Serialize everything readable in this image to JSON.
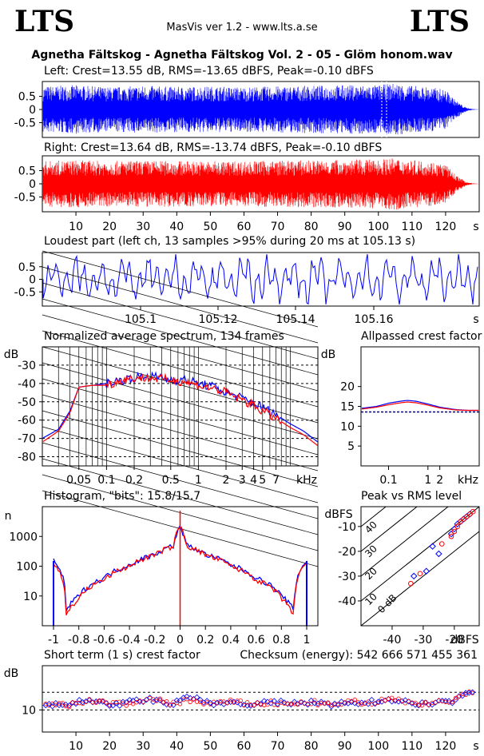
{
  "header": {
    "logo_left": "LTS",
    "logo_right": "LTS",
    "version": "MasVis ver 1.2 - www.lts.a.se",
    "track": "Agnetha Fältskog - Agnetha Fältskog Vol. 2 - 05 - Glöm honom.wav"
  },
  "waveform": {
    "left_title": "Left: Crest=13.55 dB, RMS=-13.65 dBFS, Peak=-0.10 dBFS",
    "right_title": "Right: Crest=13.64 dB, RMS=-13.74 dBFS, Peak=-0.10 dBFS",
    "y_ticks": [
      "0.5",
      "0",
      "-0.5"
    ],
    "x_ticks": [
      "10",
      "20",
      "30",
      "40",
      "50",
      "60",
      "70",
      "80",
      "90",
      "100",
      "110",
      "120"
    ],
    "x_unit": "s",
    "left_color": "#0000ff",
    "right_color": "#ff0000"
  },
  "loudest": {
    "title": "Loudest part (left  ch, 13 samples >95% during 20 ms at 105.13 s)",
    "y_ticks": [
      "0.5",
      "0",
      "-0.5"
    ],
    "x_ticks": [
      "105.1",
      "105.12",
      "105.14",
      "105.16"
    ],
    "x_unit": "s"
  },
  "spectrum": {
    "title": "Normalized average spectrum, 134 frames",
    "y_unit": "dB",
    "y_ticks": [
      "-30",
      "-40",
      "-50",
      "-60",
      "-70",
      "-80"
    ],
    "x_ticks": [
      "0.05",
      "0.1",
      "0.2",
      "0.5",
      "1",
      "2",
      "3",
      "4",
      "5",
      "7"
    ],
    "x_unit": "kHz"
  },
  "allpass": {
    "title": "Allpassed crest factor",
    "y_unit": "dB",
    "y_ticks": [
      "20",
      "15",
      "10",
      "5"
    ],
    "x_ticks": [
      "0.1",
      "1",
      "2"
    ],
    "x_unit": "kHz"
  },
  "histogram": {
    "title": "Histogram, \"bits\": 15.8/15.7",
    "y_unit": "n",
    "y_ticks": [
      "1000",
      "100",
      "10"
    ],
    "x_ticks": [
      "-1",
      "-0.8",
      "-0.6",
      "-0.4",
      "-0.2",
      "0",
      "0.2",
      "0.4",
      "0.6",
      "0.8",
      "1"
    ]
  },
  "peakrms": {
    "title": "Peak vs RMS level",
    "y_unit": "dBFS",
    "y_ticks": [
      "-10",
      "-20",
      "-30",
      "-40"
    ],
    "x_ticks": [
      "-40",
      "-30",
      "-20"
    ],
    "x_unit": "dBFS",
    "diag_labels": [
      "40",
      "30",
      "20",
      "10",
      "0 dB"
    ]
  },
  "shortcrest": {
    "title": "Short term (1 s) crest factor",
    "checksum": "Checksum (energy):   542 666 571 455 361",
    "y_unit": "dB",
    "y_ticks": [
      "10"
    ],
    "x_ticks": [
      "10",
      "20",
      "30",
      "40",
      "50",
      "60",
      "70",
      "80",
      "90",
      "100",
      "110",
      "120"
    ],
    "x_unit": "s"
  },
  "chart_data": [
    {
      "type": "area",
      "title": "Left: Crest=13.55 dB, RMS=-13.65 dBFS, Peak=-0.10 dBFS",
      "xlabel": "s",
      "xlim": [
        0,
        130
      ],
      "ylim": [
        -1,
        1
      ],
      "series": [
        {
          "name": "Left",
          "color": "#0000ff",
          "envelope_x": [
            0,
            10,
            20,
            30,
            40,
            50,
            60,
            70,
            80,
            90,
            100,
            105,
            110,
            115,
            120,
            123,
            126,
            128,
            130
          ],
          "envelope_y": [
            0.88,
            0.92,
            0.85,
            0.9,
            0.86,
            0.88,
            0.85,
            0.88,
            0.9,
            0.93,
            0.92,
            1.0,
            0.9,
            0.86,
            0.75,
            0.35,
            0.08,
            0.02,
            0
          ]
        }
      ]
    },
    {
      "type": "area",
      "title": "Right: Crest=13.64 dB, RMS=-13.74 dBFS, Peak=-0.10 dBFS",
      "xlabel": "s",
      "xlim": [
        0,
        130
      ],
      "ylim": [
        -1,
        1
      ],
      "series": [
        {
          "name": "Right",
          "color": "#ff0000",
          "envelope_x": [
            0,
            10,
            20,
            30,
            40,
            50,
            60,
            70,
            80,
            90,
            100,
            105,
            110,
            115,
            120,
            123,
            126,
            128,
            130
          ],
          "envelope_y": [
            0.86,
            0.9,
            0.86,
            0.88,
            0.87,
            0.86,
            0.86,
            0.88,
            0.89,
            0.92,
            0.93,
            0.98,
            0.9,
            0.86,
            0.74,
            0.34,
            0.08,
            0.02,
            0
          ]
        }
      ]
    },
    {
      "type": "line",
      "title": "Loudest part (left  ch, 13 samples >95% during 20 ms at 105.13 s)",
      "xlabel": "s",
      "xlim": [
        105.08,
        105.18
      ],
      "ylim": [
        -1,
        1
      ],
      "series": [
        {
          "color": "#0000ff",
          "x": [
            105.08,
            105.09,
            105.1,
            105.11,
            105.12,
            105.13,
            105.14,
            105.15,
            105.16,
            105.17,
            105.18
          ],
          "y": [
            0.4,
            -0.5,
            0.6,
            -0.7,
            0.5,
            0.95,
            -0.6,
            0.5,
            -0.7,
            0.6,
            0.3
          ]
        }
      ]
    },
    {
      "type": "line",
      "title": "Normalized average spectrum, 134 frames",
      "xlabel": "kHz",
      "ylabel": "dB",
      "ylim": [
        -85,
        -20
      ],
      "x": [
        0.02,
        0.03,
        0.04,
        0.05,
        0.07,
        0.1,
        0.15,
        0.2,
        0.3,
        0.5,
        0.7,
        1,
        1.5,
        2,
        3,
        4,
        5,
        7,
        10,
        14,
        20
      ],
      "series": [
        {
          "color": "#0000ff",
          "y": [
            -70,
            -65,
            -55,
            -42,
            -41,
            -40,
            -38,
            -37,
            -36,
            -38,
            -38,
            -40,
            -42,
            -45,
            -48,
            -51,
            -53,
            -57,
            -62,
            -66,
            -72
          ]
        },
        {
          "color": "#ff0000",
          "y": [
            -72,
            -66,
            -56,
            -42,
            -41,
            -41,
            -38,
            -37,
            -37,
            -38,
            -39,
            -41,
            -43,
            -45,
            -49,
            -52,
            -55,
            -59,
            -64,
            -68,
            -74
          ]
        }
      ]
    },
    {
      "type": "line",
      "title": "Allpassed crest factor",
      "xlabel": "kHz",
      "ylabel": "dB",
      "ylim": [
        0,
        25
      ],
      "x": [
        0.02,
        0.05,
        0.1,
        0.2,
        0.3,
        0.5,
        1,
        2,
        5,
        10,
        20
      ],
      "series": [
        {
          "color": "#0000ff",
          "y": [
            14.5,
            15.0,
            15.8,
            16.3,
            16.5,
            16.3,
            15.6,
            14.8,
            14.2,
            14.0,
            14.0
          ]
        },
        {
          "color": "#ff0000",
          "y": [
            14.3,
            14.8,
            15.4,
            15.9,
            16.1,
            15.9,
            15.3,
            14.6,
            14.1,
            14.0,
            14.0
          ]
        }
      ],
      "reference": 13.6
    },
    {
      "type": "line",
      "title": "Histogram, \"bits\": 15.8/15.7",
      "ylabel": "n",
      "log_y": true,
      "x": [
        -1,
        -0.9,
        -0.8,
        -0.6,
        -0.4,
        -0.2,
        -0.05,
        0,
        0.05,
        0.2,
        0.4,
        0.6,
        0.8,
        0.9,
        1
      ],
      "series": [
        {
          "color": "#0000ff",
          "y": [
            150,
            3,
            10,
            40,
            110,
            250,
            500,
            2000,
            500,
            250,
            110,
            40,
            10,
            3,
            150
          ]
        },
        {
          "color": "#ff0000",
          "y": [
            120,
            2,
            8,
            35,
            100,
            240,
            480,
            2200,
            480,
            240,
            100,
            35,
            8,
            2,
            120
          ]
        }
      ]
    },
    {
      "type": "scatter",
      "title": "Peak vs RMS level",
      "xlabel": "dBFS",
      "ylabel": "dBFS",
      "xlim": [
        -50,
        -12
      ],
      "ylim": [
        -50,
        -2
      ],
      "series": [
        {
          "color": "#0000ff",
          "x": [
            -33,
            -29,
            -27,
            -25,
            -21,
            -20,
            -19,
            -18,
            -17,
            -16,
            -15
          ],
          "y": [
            -30,
            -28,
            -18,
            -21,
            -13,
            -11,
            -9,
            -8,
            -7,
            -6,
            -5
          ]
        },
        {
          "color": "#ff0000",
          "x": [
            -34,
            -31,
            -24,
            -21,
            -20,
            -19,
            -18,
            -17,
            -16,
            -15,
            -14
          ],
          "y": [
            -33,
            -29,
            -17,
            -14,
            -12,
            -10,
            -8,
            -7,
            -6,
            -5,
            -4
          ]
        }
      ]
    },
    {
      "type": "scatter",
      "title": "Short term (1 s) crest factor",
      "xlabel": "s",
      "ylabel": "dB",
      "xlim": [
        0,
        130
      ],
      "ylim": [
        5,
        20
      ],
      "series": [
        {
          "color": "#0000ff",
          "x": [
            2,
            8,
            14,
            20,
            26,
            32,
            38,
            44,
            50,
            56,
            62,
            68,
            74,
            80,
            86,
            92,
            98,
            104,
            110,
            116,
            122,
            126,
            128
          ],
          "y": [
            11,
            11.5,
            12,
            11,
            11.8,
            12.4,
            11.2,
            12.8,
            11.5,
            11.6,
            11.2,
            11.8,
            11.4,
            11.6,
            11.2,
            11.6,
            11.8,
            12.4,
            11.6,
            11.4,
            12,
            14,
            14.5
          ]
        },
        {
          "color": "#ff0000",
          "x": [
            2,
            8,
            14,
            20,
            26,
            32,
            38,
            44,
            50,
            56,
            62,
            68,
            74,
            80,
            86,
            92,
            98,
            104,
            110,
            116,
            122,
            126,
            128
          ],
          "y": [
            11.2,
            11,
            12.2,
            11.4,
            11.4,
            12.6,
            11.5,
            12.2,
            11.4,
            11.8,
            11.3,
            11.6,
            11.2,
            11.8,
            11,
            11.8,
            11.6,
            12.6,
            11.4,
            11.6,
            12.2,
            13.4,
            14
          ]
        }
      ]
    }
  ]
}
